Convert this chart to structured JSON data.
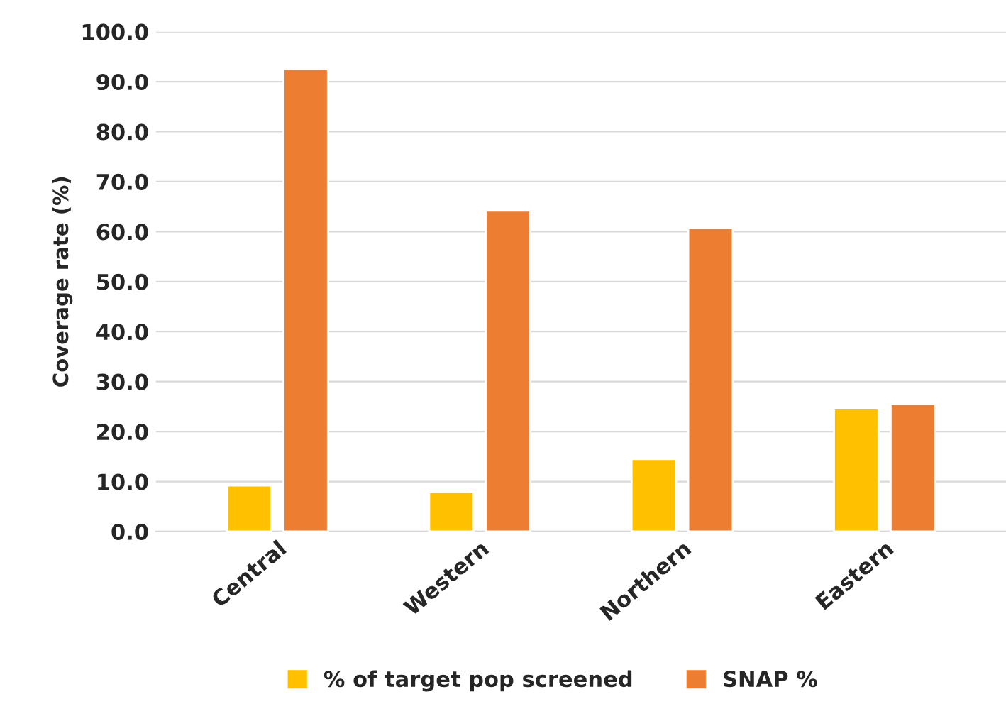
{
  "chart_data": {
    "type": "bar",
    "ylabel": "Coverage rate (%)",
    "categories": [
      "Central",
      "Western",
      "Northern",
      "Eastern"
    ],
    "series": [
      {
        "name": "% of target pop screened",
        "color": "#ffc000",
        "values": [
          9.2,
          7.9,
          14.5,
          24.6
        ]
      },
      {
        "name": "SNAP %",
        "color": "#ed7d31",
        "values": [
          92.5,
          64.2,
          60.7,
          25.5
        ]
      }
    ],
    "ylim": [
      0,
      100
    ],
    "yticks": [
      {
        "value": 0,
        "label": "0.0"
      },
      {
        "value": 10,
        "label": "10.0"
      },
      {
        "value": 20,
        "label": "20.0"
      },
      {
        "value": 30,
        "label": "30.0"
      },
      {
        "value": 40,
        "label": "40.0"
      },
      {
        "value": 50,
        "label": "50.0"
      },
      {
        "value": 60,
        "label": "60.0"
      },
      {
        "value": 70,
        "label": "70.0"
      },
      {
        "value": 80,
        "label": "80.0"
      },
      {
        "value": 90,
        "label": "90.0"
      },
      {
        "value": 100,
        "label": "100.0"
      }
    ],
    "grid": "y",
    "legend": "bottom"
  }
}
